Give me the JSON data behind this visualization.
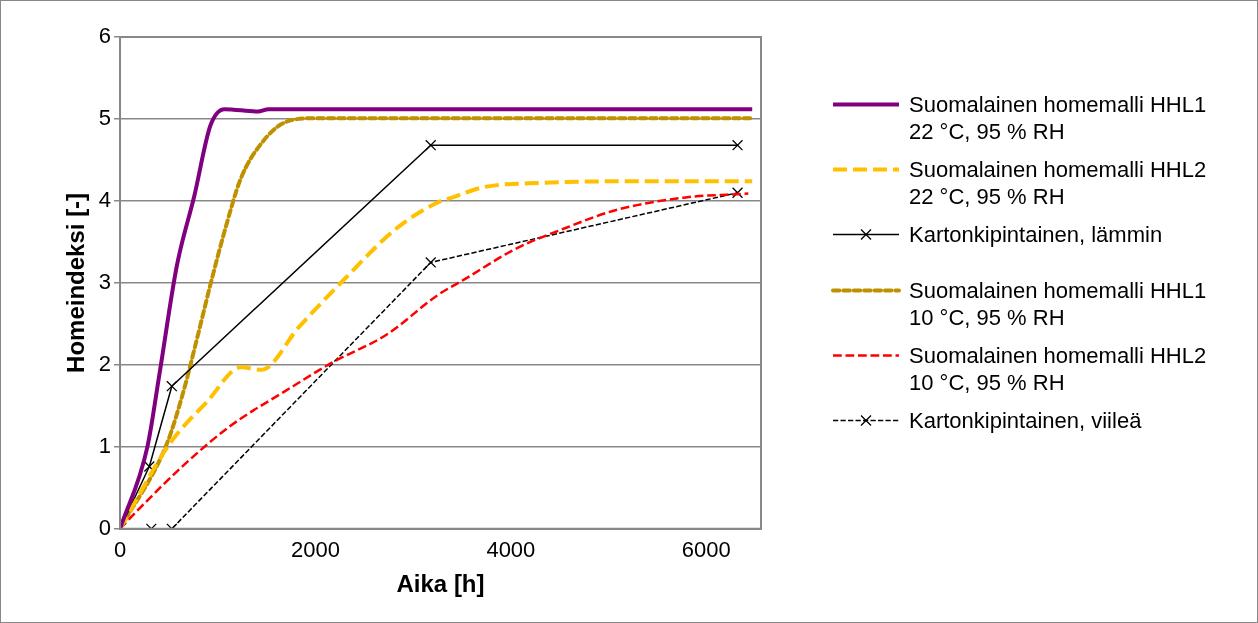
{
  "chart_data": {
    "type": "line",
    "xlabel": "Aika [h]",
    "ylabel": "Homeindeksi [-]",
    "xlim": [
      0,
      6560
    ],
    "xticks": [
      0,
      2000,
      4000,
      6000
    ],
    "ylim": [
      0,
      6
    ],
    "yticks": [
      0,
      1,
      2,
      3,
      4,
      5,
      6
    ],
    "grid": "y",
    "legend": "right",
    "series": [
      {
        "name": "Suomalainen homemalli HHL1 22 °C, 95 % RH",
        "color": "#800080",
        "line_style": "solid",
        "marker": "none",
        "x": [
          0,
          280,
          405,
          580,
          760,
          925,
          1070,
          1410,
          1520,
          6470
        ],
        "values": [
          0,
          1.0,
          1.9,
          3.2,
          4.06,
          4.92,
          5.12,
          5.09,
          5.12,
          5.12
        ]
      },
      {
        "name": "Suomalainen homemalli HHL2 22 °C, 95 % RH",
        "color": "#ffc000",
        "line_style": "dashed",
        "marker": "none",
        "x": [
          0,
          510,
          890,
          1240,
          1445,
          1830,
          2275,
          2835,
          3250,
          3420,
          3730,
          4320,
          5255,
          6470
        ],
        "values": [
          0,
          1.04,
          1.55,
          1.97,
          1.94,
          2.46,
          3.02,
          3.67,
          3.98,
          4.05,
          4.17,
          4.22,
          4.24,
          4.24
        ]
      },
      {
        "name": "Kartonkipintainen, lämmin",
        "color": "#000000",
        "line_style": "solid",
        "marker": "cross",
        "x": [
          0,
          300,
          530,
          3180,
          6320
        ],
        "values": [
          0,
          0.76,
          1.74,
          4.68,
          4.68
        ]
      },
      {
        "name": "Suomalainen homemalli HHL1 10 °C, 95 % RH",
        "color": "#bf9000",
        "line_style": "dotted",
        "marker": "none",
        "x": [
          0,
          480,
          650,
          790,
          925,
          1070,
          1235,
          1445,
          1690,
          2000,
          6470
        ],
        "values": [
          0,
          1.04,
          1.68,
          2.33,
          2.98,
          3.63,
          4.27,
          4.7,
          4.96,
          5.01,
          5.01
        ]
      },
      {
        "name": "Suomalainen homemalli HHL2 10 °C, 95 % RH",
        "color": "#ff0000",
        "line_style": "dashed",
        "marker": "none",
        "x": [
          0,
          135,
          655,
          1135,
          1690,
          2175,
          2730,
          3250,
          3520,
          4040,
          4560,
          5080,
          5770,
          6430
        ],
        "values": [
          0,
          0.17,
          0.78,
          1.26,
          1.68,
          2.03,
          2.37,
          2.85,
          3.04,
          3.41,
          3.67,
          3.89,
          4.04,
          4.09
        ]
      },
      {
        "name": "Kartonkipintainen, viileä",
        "color": "#000000",
        "line_style": "dashed",
        "marker": "cross",
        "x": [
          0,
          320,
          530,
          3180,
          6320
        ],
        "values": [
          0,
          0,
          0,
          3.25,
          4.1
        ]
      }
    ]
  }
}
